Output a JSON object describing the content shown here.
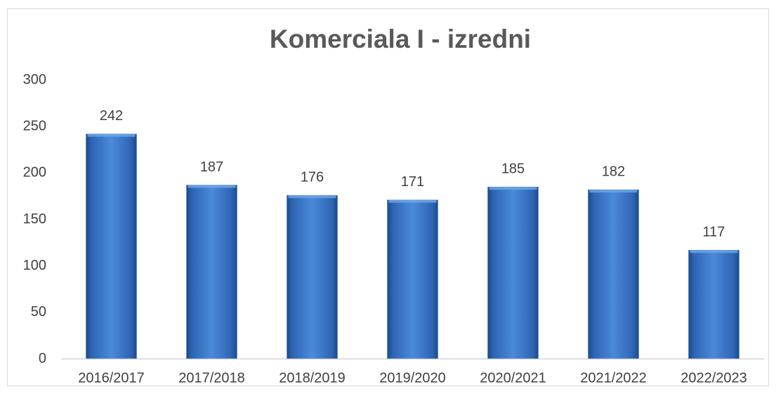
{
  "chart_data": {
    "type": "bar",
    "title": "Komerciala I - izredni",
    "categories": [
      "2016/2017",
      "2017/2018",
      "2018/2019",
      "2019/2020",
      "2020/2021",
      "2021/2022",
      "2022/2023"
    ],
    "values": [
      242,
      187,
      176,
      171,
      185,
      182,
      117
    ],
    "color": "#3a75c4",
    "ylim": [
      0,
      300
    ],
    "yticks": [
      0,
      50,
      100,
      150,
      200,
      250,
      300
    ],
    "grid": false,
    "data_labels": true
  }
}
